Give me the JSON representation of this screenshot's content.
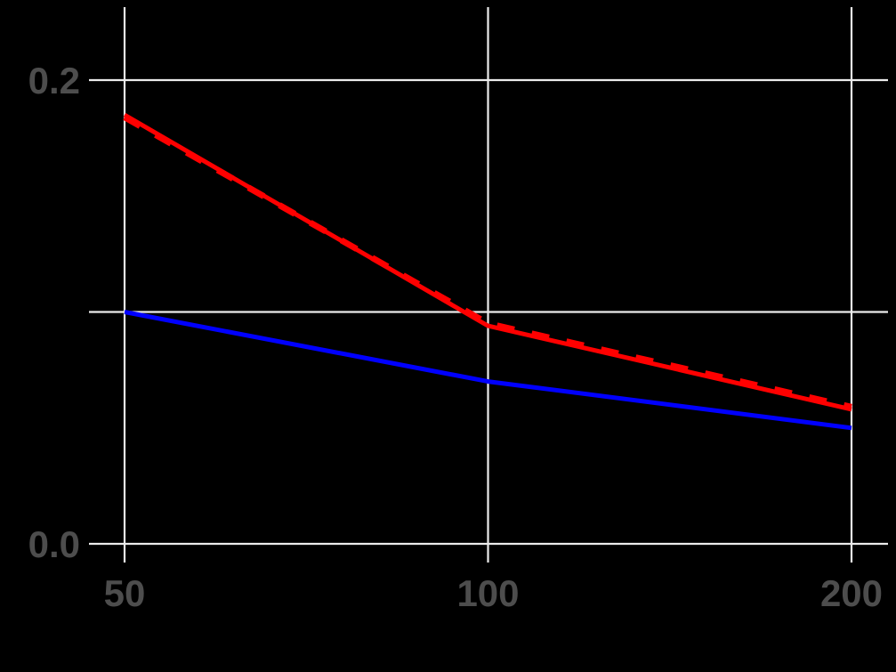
{
  "colors": {
    "background": "#000000",
    "grid": "#EBEBEB",
    "tick_label": "#4D4D4D",
    "series_red": "#FF0000",
    "series_blue": "#0000FF"
  },
  "axes": {
    "x_ticks": [
      "50",
      "100",
      "200"
    ],
    "y_ticks": [
      "0.0",
      "0.1",
      "0.2"
    ]
  },
  "chart_data": {
    "type": "line",
    "title": "",
    "xlabel": "",
    "ylabel": "",
    "x_scale": "log",
    "x": [
      50,
      100,
      200
    ],
    "xlim": [
      47,
      212
    ],
    "ylim": [
      -0.015,
      0.23
    ],
    "grid": true,
    "legend": "none",
    "x_tick_labels": [
      "50",
      "100",
      "200"
    ],
    "y_tick_labels": [
      "0.0",
      "0.1",
      "0.2"
    ],
    "series": [
      {
        "name": "red-solid",
        "color": "#FF0000",
        "linestyle": "solid",
        "values": [
          0.185,
          0.094,
          0.058
        ]
      },
      {
        "name": "red-dashed",
        "color": "#FF0000",
        "linestyle": "dashed",
        "values": [
          0.184,
          0.095,
          0.059
        ]
      },
      {
        "name": "blue-solid",
        "color": "#0000FF",
        "linestyle": "solid",
        "values": [
          0.1,
          0.07,
          0.05
        ]
      }
    ]
  }
}
